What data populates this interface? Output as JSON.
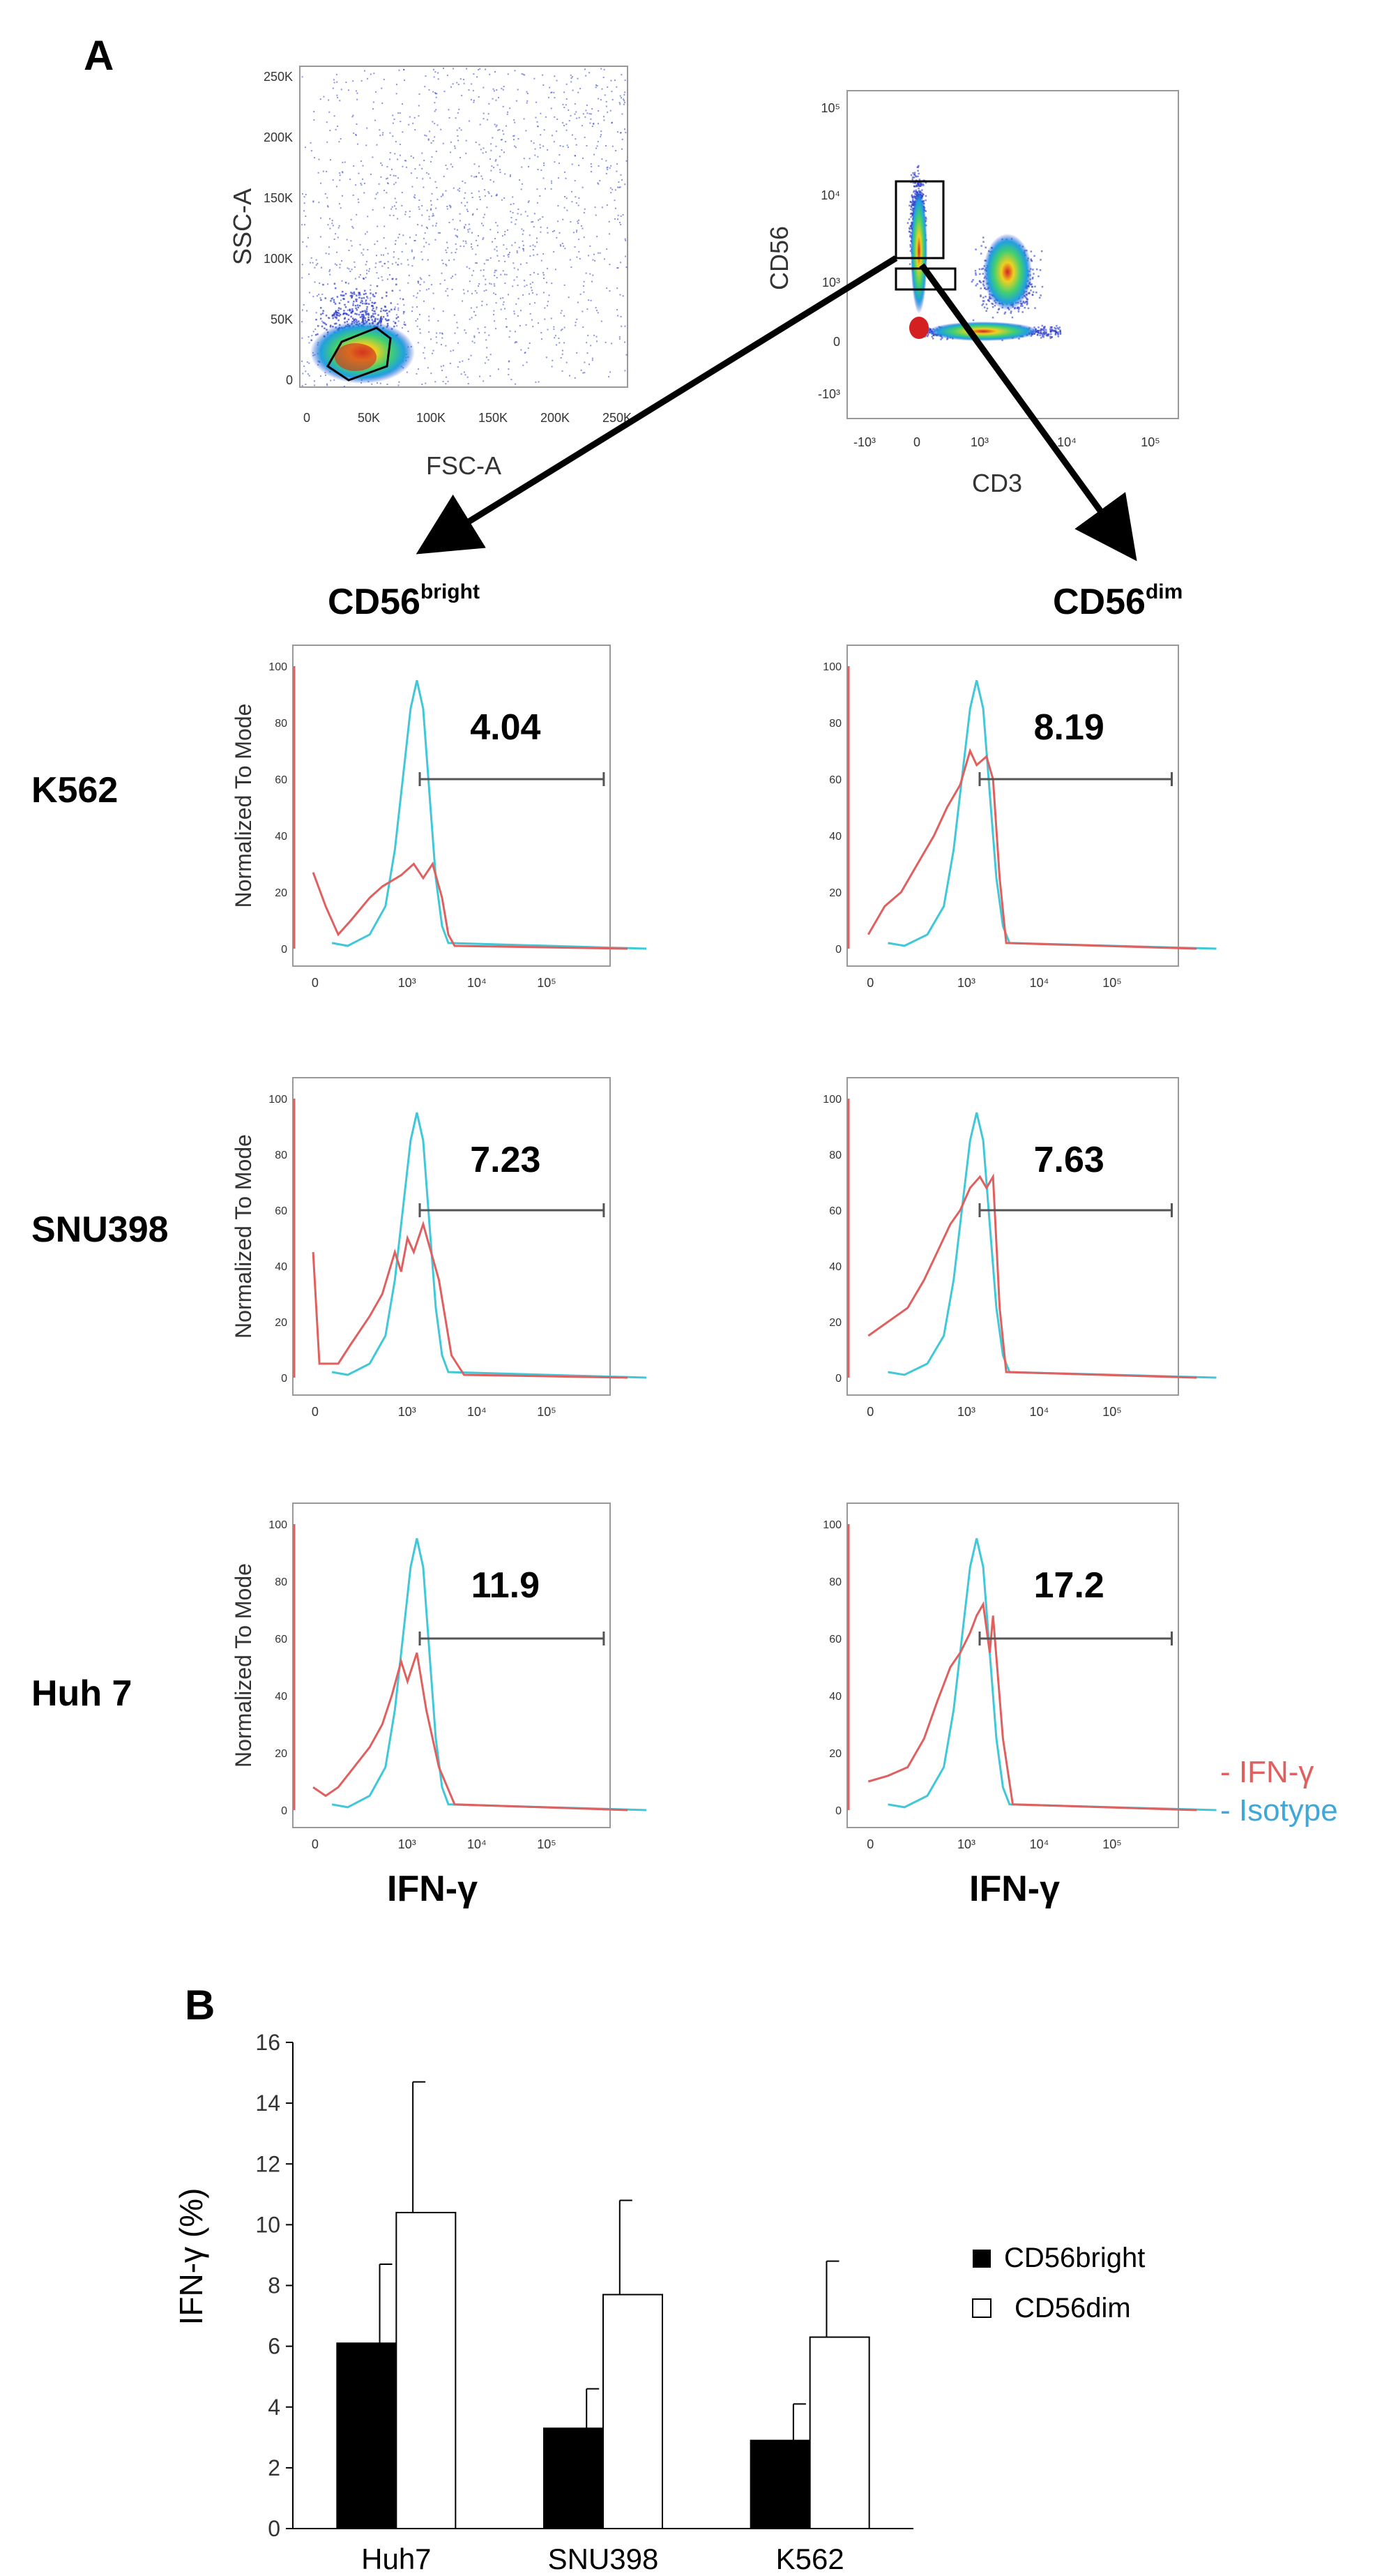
{
  "panel_a": {
    "label": "A",
    "scatter_fsc": {
      "x_label": "FSC-A",
      "y_label": "SSC-A",
      "x_ticks": [
        "0",
        "50K",
        "100K",
        "150K",
        "200K",
        "250K"
      ],
      "y_ticks": [
        "0",
        "50K",
        "100K",
        "150K",
        "200K",
        "250K"
      ]
    },
    "scatter_cd": {
      "x_label": "CD3",
      "y_label": "CD56",
      "x_ticks": [
        "-10³",
        "0",
        "10³",
        "10⁴",
        "10⁵"
      ],
      "y_ticks": [
        "-10³",
        "0",
        "10³",
        "10⁴",
        "10⁵"
      ]
    },
    "column_headers": [
      {
        "base": "CD56",
        "sup": "bright"
      },
      {
        "base": "CD56",
        "sup": "dim"
      }
    ],
    "row_labels": [
      "K562",
      "SNU398",
      "Huh 7"
    ],
    "hist_y_label": "Normalized To Mode",
    "hist_y_ticks": [
      "0",
      "20",
      "40",
      "60",
      "80",
      "100"
    ],
    "hist_x_ticks": [
      "0",
      "10³",
      "10⁴",
      "10⁵"
    ],
    "hist_x_label": "IFN-γ",
    "gate_values": [
      [
        "4.04",
        "8.19"
      ],
      [
        "7.23",
        "7.63"
      ],
      [
        "11.9",
        "17.2"
      ]
    ],
    "legend": {
      "ifn": "- IFN-γ",
      "isotype": "- Isotype"
    },
    "colors": {
      "ifn": "#e06060",
      "isotype": "#40c8d8"
    }
  },
  "panel_b": {
    "label": "B"
  },
  "chart_data": {
    "type": "bar",
    "categories": [
      "Huh7",
      "SNU398",
      "K562"
    ],
    "series": [
      {
        "name": "CD56bright",
        "values": [
          6.1,
          3.3,
          2.9
        ],
        "errors": [
          2.6,
          1.3,
          1.2
        ],
        "color": "#000000"
      },
      {
        "name": "CD56dim",
        "values": [
          10.4,
          7.7,
          6.3
        ],
        "errors": [
          4.3,
          3.1,
          2.5
        ],
        "color": "#ffffff"
      }
    ],
    "ylabel": "IFN-γ (%)",
    "xlabel": "",
    "ylim": [
      0,
      16
    ],
    "yticks": [
      0,
      2,
      4,
      6,
      8,
      10,
      12,
      14,
      16
    ],
    "legend_position": "right"
  }
}
